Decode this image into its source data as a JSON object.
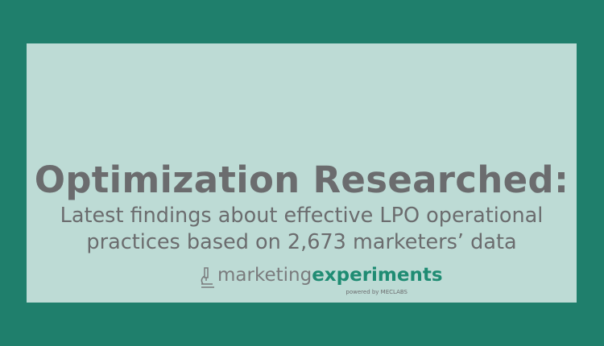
{
  "title": "Optimization Researched:",
  "subtitle_line1": "Latest findings about effective LPO operational",
  "subtitle_line2": "practices based on 2,673 marketers’ data",
  "logo": {
    "part1": "marketing",
    "part2": "experiments",
    "tagline": "powered by MECLABS",
    "icon": "microscope-icon"
  },
  "colors": {
    "background": "#1f7f6c",
    "panel": "#bddbd5",
    "text": "#6b6c6e",
    "brand": "#1f8c73"
  }
}
